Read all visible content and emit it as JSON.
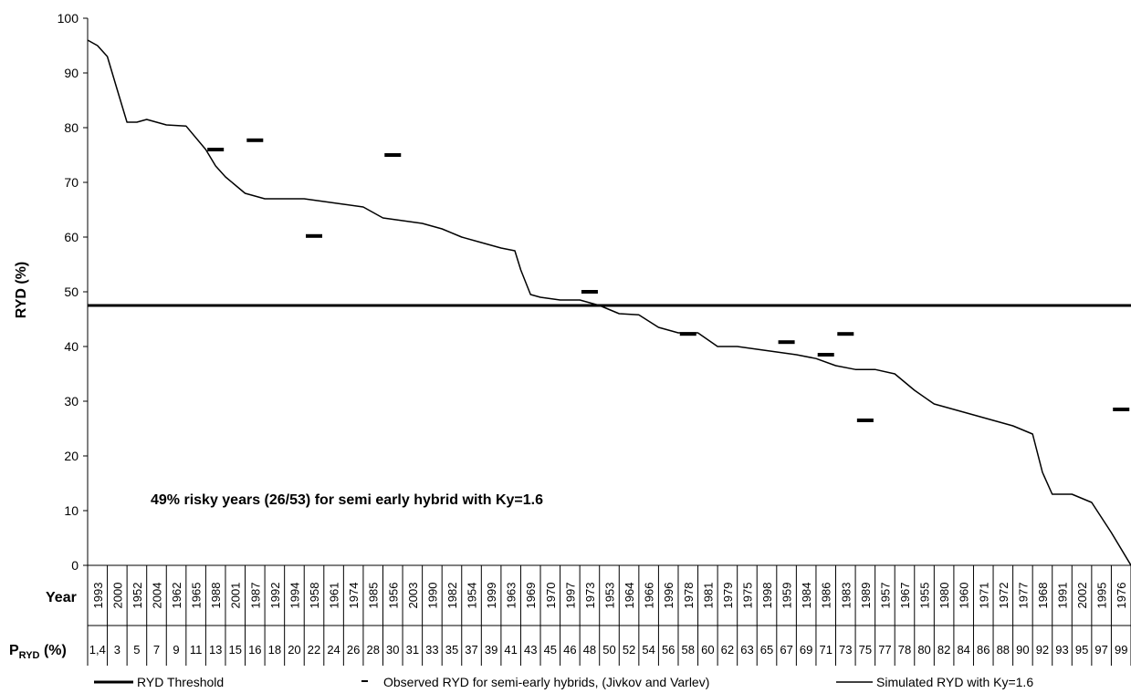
{
  "chart_data": {
    "type": "line",
    "ylabel": "RYD (%)",
    "ylim": [
      0,
      100
    ],
    "yticks": [
      0,
      10,
      20,
      30,
      40,
      50,
      60,
      70,
      80,
      90,
      100
    ],
    "row_label_year": "Year",
    "row_label_p_main": "P",
    "row_label_p_sub": "RYD",
    "row_label_p_unit": " (%)",
    "years": [
      "1993",
      "2000",
      "1952",
      "2004",
      "1962",
      "1965",
      "1988",
      "2001",
      "1987",
      "1992",
      "1994",
      "1958",
      "1961",
      "1974",
      "1985",
      "1956",
      "2003",
      "1990",
      "1982",
      "1954",
      "1999",
      "1963",
      "1969",
      "1970",
      "1997",
      "1973",
      "1953",
      "1964",
      "1966",
      "1996",
      "1978",
      "1981",
      "1979",
      "1975",
      "1998",
      "1959",
      "1984",
      "1986",
      "1983",
      "1989",
      "1957",
      "1967",
      "1955",
      "1980",
      "1960",
      "1971",
      "1972",
      "1977",
      "1968",
      "1991",
      "2002",
      "1995",
      "1976"
    ],
    "p_ryd": [
      "1,4",
      "3",
      "5",
      "7",
      "9",
      "11",
      "13",
      "15",
      "16",
      "18",
      "20",
      "22",
      "24",
      "26",
      "28",
      "30",
      "31",
      "33",
      "35",
      "37",
      "39",
      "41",
      "43",
      "45",
      "46",
      "48",
      "50",
      "52",
      "54",
      "56",
      "58",
      "60",
      "62",
      "63",
      "65",
      "67",
      "69",
      "71",
      "73",
      "75",
      "77",
      "78",
      "80",
      "82",
      "84",
      "86",
      "88",
      "90",
      "92",
      "93",
      "95",
      "97",
      "99"
    ],
    "annotation": "49% risky years (26/53) for semi early hybrid with Ky=1.6",
    "series": [
      {
        "name": "RYD Threshold",
        "style": "threshold",
        "value": 47.5
      },
      {
        "name": "Observed RYD for semi-early hybrids, (Jivkov and Varlev)",
        "style": "markers",
        "points": [
          {
            "x": "1988",
            "y": 76
          },
          {
            "x": "1987",
            "y": 77.7
          },
          {
            "x": "1958",
            "y": 60.2
          },
          {
            "x": "1956",
            "y": 75
          },
          {
            "x": "1973",
            "y": 50
          },
          {
            "x": "1978",
            "y": 42.3
          },
          {
            "x": "1959",
            "y": 40.8
          },
          {
            "x": "1986",
            "y": 38.5
          },
          {
            "x": "1983",
            "y": 42.3
          },
          {
            "x": "1989",
            "y": 26.5
          },
          {
            "x": "1976",
            "y": 28.5
          }
        ]
      },
      {
        "name": "Simulated RYD with Ky=1.6",
        "style": "line",
        "points": [
          {
            "x": 0,
            "y": 96
          },
          {
            "x": 0.5,
            "y": 95
          },
          {
            "x": 1,
            "y": 93
          },
          {
            "x": 1.5,
            "y": 87
          },
          {
            "x": 2,
            "y": 81
          },
          {
            "x": 2.5,
            "y": 81
          },
          {
            "x": 3,
            "y": 81.5
          },
          {
            "x": 4,
            "y": 80.5
          },
          {
            "x": 5,
            "y": 80.3
          },
          {
            "x": 6,
            "y": 76
          },
          {
            "x": 6.5,
            "y": 73
          },
          {
            "x": 7,
            "y": 71
          },
          {
            "x": 8,
            "y": 68
          },
          {
            "x": 9,
            "y": 67
          },
          {
            "x": 10,
            "y": 67
          },
          {
            "x": 11,
            "y": 67
          },
          {
            "x": 12,
            "y": 66.5
          },
          {
            "x": 13,
            "y": 66
          },
          {
            "x": 14,
            "y": 65.5
          },
          {
            "x": 15,
            "y": 63.5
          },
          {
            "x": 16,
            "y": 63
          },
          {
            "x": 17,
            "y": 62.5
          },
          {
            "x": 18,
            "y": 61.5
          },
          {
            "x": 19,
            "y": 60
          },
          {
            "x": 20,
            "y": 59
          },
          {
            "x": 21,
            "y": 58
          },
          {
            "x": 21.7,
            "y": 57.5
          },
          {
            "x": 22,
            "y": 54
          },
          {
            "x": 22.5,
            "y": 49.5
          },
          {
            "x": 23,
            "y": 49
          },
          {
            "x": 24,
            "y": 48.5
          },
          {
            "x": 25,
            "y": 48.5
          },
          {
            "x": 26,
            "y": 47.5
          },
          {
            "x": 27,
            "y": 46
          },
          {
            "x": 28,
            "y": 45.8
          },
          {
            "x": 29,
            "y": 43.5
          },
          {
            "x": 30,
            "y": 42.5
          },
          {
            "x": 31,
            "y": 42.5
          },
          {
            "x": 32,
            "y": 40
          },
          {
            "x": 33,
            "y": 40
          },
          {
            "x": 34,
            "y": 39.5
          },
          {
            "x": 35,
            "y": 39
          },
          {
            "x": 36,
            "y": 38.5
          },
          {
            "x": 37,
            "y": 37.8
          },
          {
            "x": 38,
            "y": 36.5
          },
          {
            "x": 39,
            "y": 35.8
          },
          {
            "x": 40,
            "y": 35.8
          },
          {
            "x": 41,
            "y": 35
          },
          {
            "x": 42,
            "y": 32
          },
          {
            "x": 43,
            "y": 29.5
          },
          {
            "x": 44,
            "y": 28.5
          },
          {
            "x": 45,
            "y": 27.5
          },
          {
            "x": 46,
            "y": 26.5
          },
          {
            "x": 47,
            "y": 25.5
          },
          {
            "x": 48,
            "y": 24
          },
          {
            "x": 48.5,
            "y": 17
          },
          {
            "x": 49,
            "y": 13
          },
          {
            "x": 50,
            "y": 13
          },
          {
            "x": 51,
            "y": 11.5
          },
          {
            "x": 52,
            "y": 6
          },
          {
            "x": 53,
            "y": 0
          }
        ]
      }
    ]
  }
}
